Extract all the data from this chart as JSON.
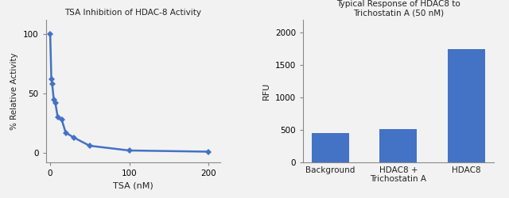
{
  "left_title": "TSA Inhibition of HDAC-8 Activity",
  "left_xlabel": "TSA (nM)",
  "left_ylabel": "% Relative Activity",
  "line_color": "#4472C4",
  "line_x": [
    0.5,
    2,
    3,
    5,
    7,
    10,
    15,
    20,
    30,
    50,
    100,
    200
  ],
  "line_y": [
    100,
    62,
    58,
    45,
    42,
    30,
    28,
    17,
    13,
    6,
    2,
    1
  ],
  "left_xlim": [
    -5,
    215
  ],
  "left_ylim": [
    -8,
    112
  ],
  "left_xticks": [
    0,
    100,
    200
  ],
  "left_yticks": [
    0,
    50,
    100
  ],
  "right_title": "Typical Response of HDAC8 to\nTrichostatin A (50 nM)",
  "right_ylabel": "RFU",
  "bar_categories": [
    "Background",
    "HDAC8 +\nTrichostatin A",
    "HDAC8"
  ],
  "bar_values": [
    450,
    510,
    1750
  ],
  "bar_color": "#4472C4",
  "right_ylim": [
    0,
    2200
  ],
  "right_yticks": [
    0,
    500,
    1000,
    1500,
    2000
  ],
  "bg_color": "#f2f2f2"
}
